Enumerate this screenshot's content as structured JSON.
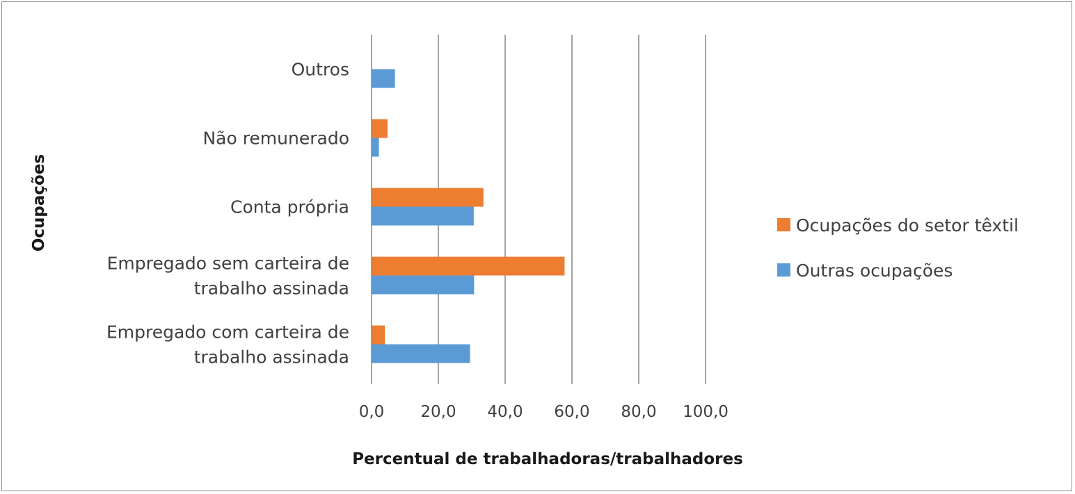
{
  "chart_data": {
    "type": "bar",
    "orientation": "horizontal",
    "title": "",
    "xlabel": "Percentual de trabalhadoras/trabalhadores",
    "ylabel": "Ocupações",
    "xlim": [
      0,
      100
    ],
    "xticks": [
      "0,0",
      "20,0",
      "40,0",
      "60,0",
      "80,0",
      "100,0"
    ],
    "xtick_values": [
      0,
      20,
      40,
      60,
      80,
      100
    ],
    "grid": "vertical",
    "legend_position": "right",
    "categories": [
      [
        "Outros"
      ],
      [
        "Não remunerado"
      ],
      [
        "Conta própria"
      ],
      [
        "Empregado sem carteira de",
        "trabalho assinada"
      ],
      [
        "Empregado com carteira de",
        "trabalho assinada"
      ]
    ],
    "series": [
      {
        "name": "Ocupações do setor têxtil",
        "color": "#ED7D31",
        "values": [
          0,
          4.8,
          33.5,
          57.8,
          4.0
        ]
      },
      {
        "name": "Outras ocupações",
        "color": "#5B9BD5",
        "values": [
          7.0,
          2.2,
          30.6,
          30.7,
          29.5
        ]
      }
    ]
  }
}
